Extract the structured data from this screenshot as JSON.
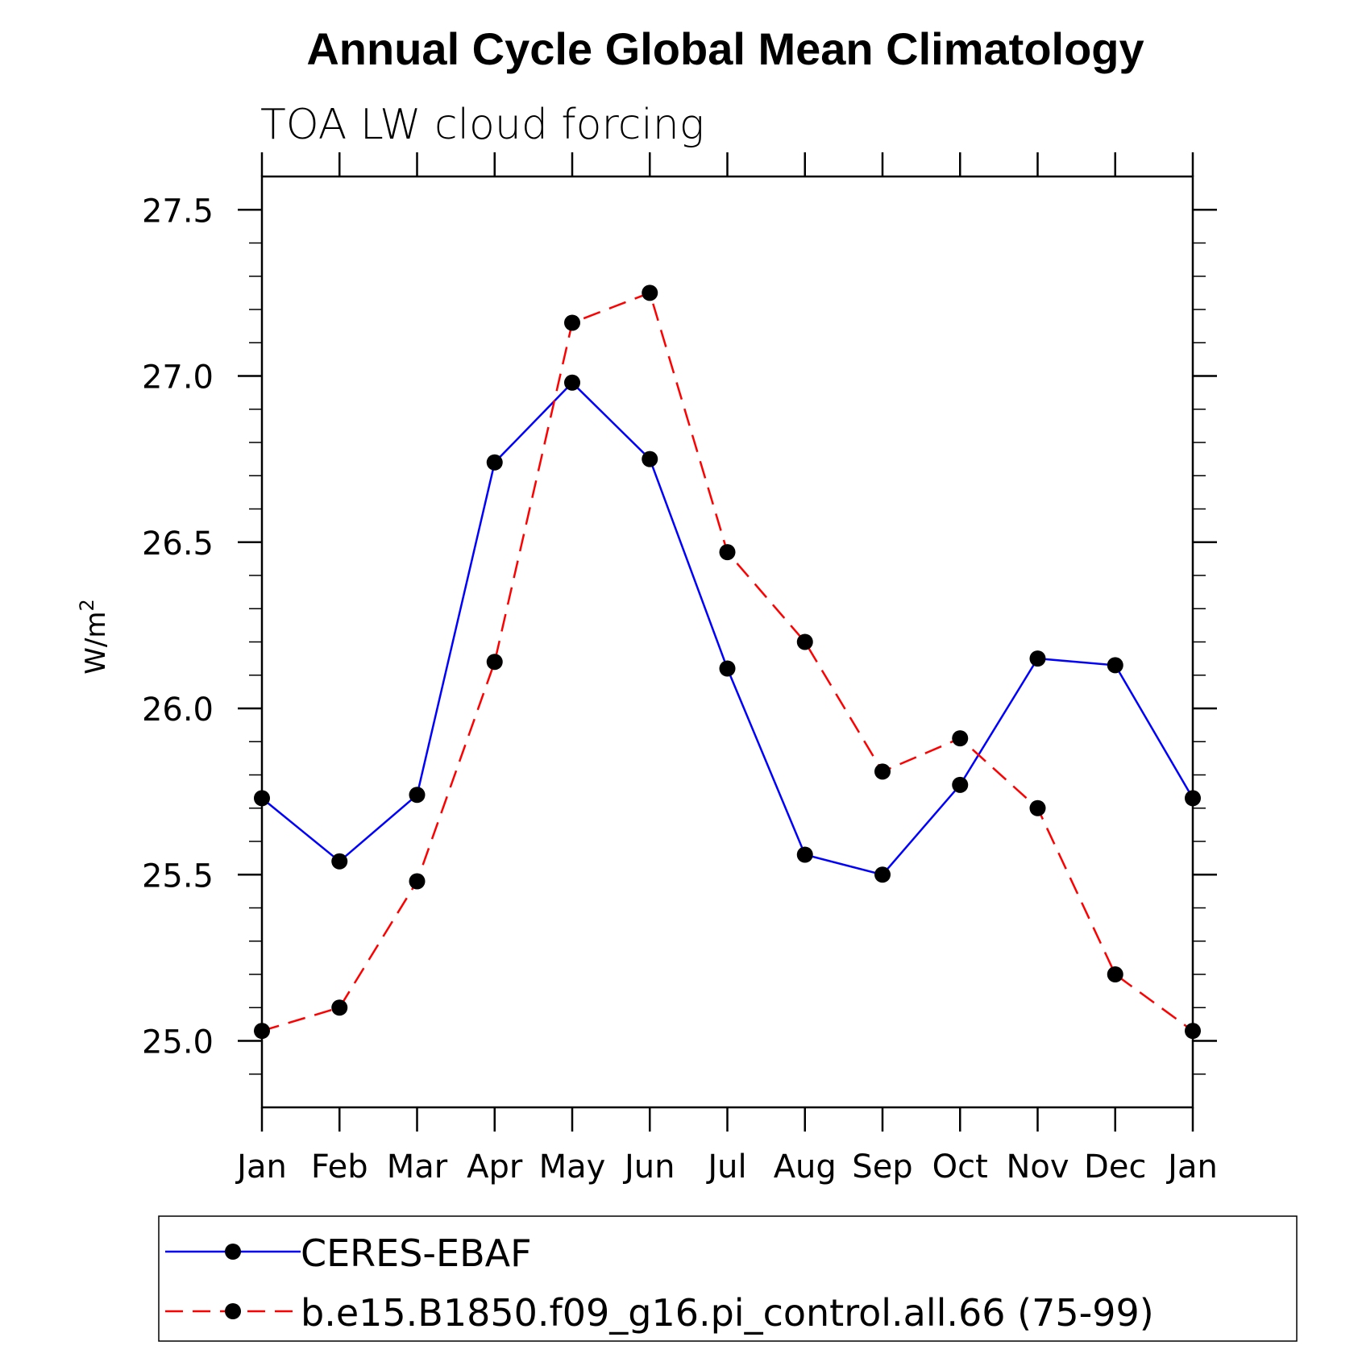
{
  "chart_data": {
    "type": "line",
    "title": "Annual Cycle Global Mean Climatology",
    "subtitle": "TOA LW cloud forcing",
    "ylabel": "W/m",
    "ylabel_superscript": "2",
    "xlabel": "",
    "categories": [
      "Jan",
      "Feb",
      "Mar",
      "Apr",
      "May",
      "Jun",
      "Jul",
      "Aug",
      "Sep",
      "Oct",
      "Nov",
      "Dec",
      "Jan"
    ],
    "ylim": [
      24.8,
      27.6
    ],
    "yticks": [
      "25.0",
      "25.5",
      "26.0",
      "26.5",
      "27.0",
      "27.5"
    ],
    "ytick_values": [
      25.0,
      25.5,
      26.0,
      26.5,
      27.0,
      27.5
    ],
    "grid": false,
    "legend_position": "bottom",
    "series": [
      {
        "name": "CERES-EBAF",
        "color": "#0000ff",
        "dash": "solid",
        "values": [
          25.73,
          25.54,
          25.74,
          26.74,
          26.98,
          26.75,
          26.12,
          25.56,
          25.5,
          25.77,
          26.15,
          26.13,
          25.73
        ]
      },
      {
        "name": "b.e15.B1850.f09_g16.pi_control.all.66 (75-99)",
        "color": "#ff0000",
        "dash": "dashed",
        "values": [
          25.03,
          25.1,
          25.48,
          26.14,
          27.16,
          27.25,
          26.47,
          26.2,
          25.81,
          25.91,
          25.7,
          25.2,
          25.03
        ]
      }
    ]
  }
}
